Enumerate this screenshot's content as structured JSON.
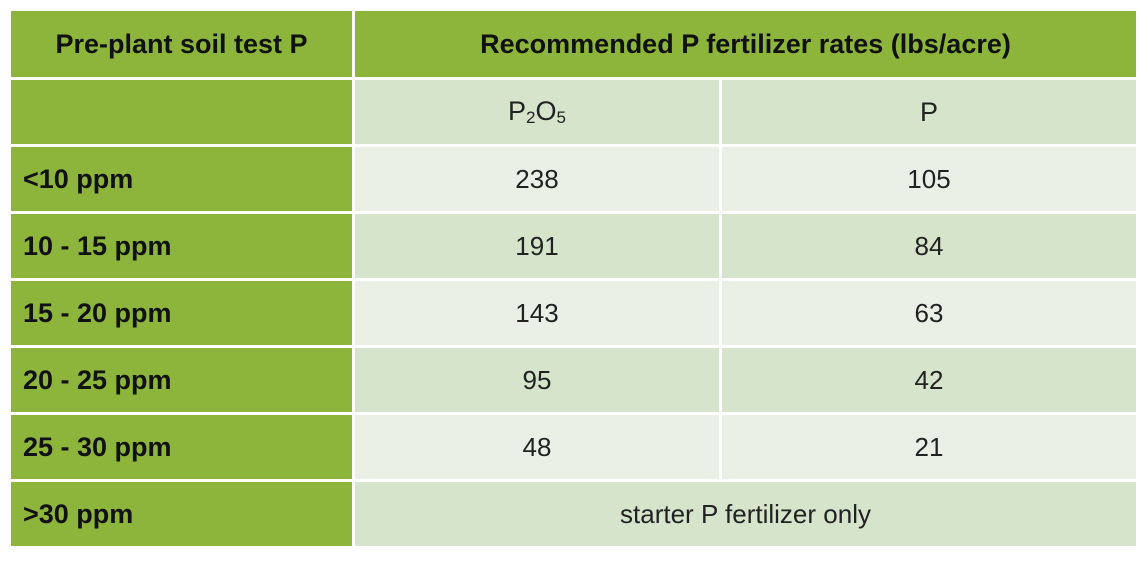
{
  "header": {
    "col1": "Pre-plant soil test P",
    "col2": "Recommended P fertilizer rates (lbs/acre)"
  },
  "subheader": {
    "col1": "",
    "p2o5_base1": "P",
    "p2o5_sub1": "2",
    "p2o5_base2": "O",
    "p2o5_sub2": "5",
    "p": "P"
  },
  "rows": [
    {
      "label": "<10 ppm",
      "p2o5": "238",
      "p": "105"
    },
    {
      "label": "10 - 15 ppm",
      "p2o5": "191",
      "p": "84"
    },
    {
      "label": "15 - 20 ppm",
      "p2o5": "143",
      "p": "63"
    },
    {
      "label": "20 - 25 ppm",
      "p2o5": "95",
      "p": "42"
    },
    {
      "label": "25 - 30 ppm",
      "p2o5": "48",
      "p": "21"
    }
  ],
  "final_row": {
    "label": ">30 ppm",
    "note": "starter P fertilizer only"
  },
  "colors": {
    "header_green": "#8db53c",
    "light_cell": "#eaf0e5",
    "dark_cell": "#d7e4cc"
  }
}
